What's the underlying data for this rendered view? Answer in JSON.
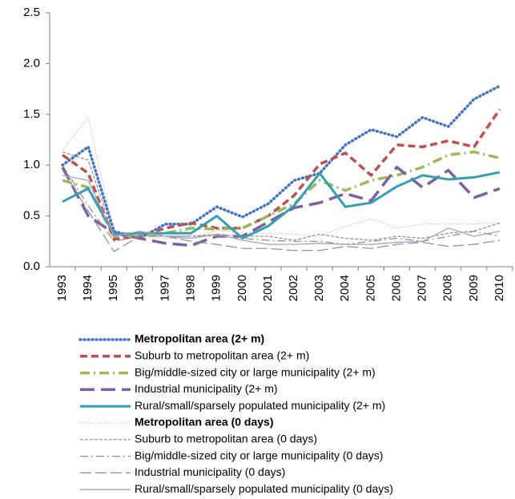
{
  "chart_data": {
    "type": "line",
    "categories": [
      "1993",
      "1994",
      "1995",
      "1996",
      "1997",
      "1998",
      "1999",
      "2000",
      "2001",
      "2002",
      "2003",
      "2004",
      "2005",
      "2006",
      "2007",
      "2008",
      "2009",
      "2010"
    ],
    "ylim": [
      0,
      2.5
    ],
    "yticks": [
      {
        "value": 0,
        "label": "0.0"
      },
      0.5,
      {
        "value": 1,
        "label": "1.0"
      },
      1.5,
      {
        "value": 2,
        "label": "2.0"
      },
      2.5
    ],
    "series": [
      {
        "name": "Metropolitan area (2+ m)",
        "color": "#4472c4",
        "values": [
          1.0,
          1.18,
          0.35,
          0.28,
          0.42,
          0.42,
          0.59,
          0.49,
          0.62,
          0.85,
          0.92,
          1.2,
          1.35,
          1.28,
          1.47,
          1.38,
          1.65,
          1.78
        ]
      },
      {
        "name": "Suburb to metropolitan area (2+ m)",
        "color": "#c0504d",
        "values": [
          1.1,
          0.92,
          0.27,
          0.3,
          0.38,
          0.43,
          0.38,
          0.38,
          0.5,
          0.7,
          1.01,
          1.12,
          0.9,
          1.2,
          1.18,
          1.24,
          1.18,
          1.55
        ]
      },
      {
        "name": "Big/middle-sized city or large municipality (2+ m)",
        "color": "#9bbb59",
        "values": [
          0.85,
          0.78,
          0.3,
          0.3,
          0.33,
          0.38,
          0.37,
          0.38,
          0.5,
          0.62,
          0.85,
          0.75,
          0.85,
          0.9,
          0.98,
          1.1,
          1.13,
          1.07
        ]
      },
      {
        "name": "Industrial municipality (2+ m)",
        "color": "#7f5fa0",
        "values": [
          0.98,
          0.5,
          0.33,
          0.28,
          0.23,
          0.21,
          0.3,
          0.3,
          0.44,
          0.58,
          0.63,
          0.72,
          0.65,
          0.98,
          0.78,
          0.95,
          0.68,
          0.77
        ]
      },
      {
        "name": "Rural/small/sparsely populated municipality (2+ m)",
        "color": "#31a0b5",
        "values": [
          0.64,
          0.77,
          0.32,
          0.33,
          0.33,
          0.33,
          0.5,
          0.28,
          0.4,
          0.6,
          0.92,
          0.59,
          0.63,
          0.79,
          0.9,
          0.86,
          0.88,
          0.93
        ]
      },
      {
        "name": "Metropolitan area (0 days)",
        "color": "#a6a6a6",
        "values": [
          1.15,
          1.47,
          0.32,
          0.3,
          0.28,
          0.28,
          0.36,
          0.33,
          0.33,
          0.32,
          0.3,
          0.4,
          0.47,
          0.38,
          0.42,
          0.42,
          0.42,
          0.43
        ]
      },
      {
        "name": "Suburb to metropolitan area (0 days)",
        "color": "#8c8c8c",
        "values": [
          1.13,
          1.05,
          0.3,
          0.35,
          0.3,
          0.3,
          0.32,
          0.3,
          0.3,
          0.26,
          0.32,
          0.28,
          0.26,
          0.3,
          0.28,
          0.33,
          0.35,
          0.43
        ]
      },
      {
        "name": "Big/middle-sized city or large municipality (0 days)",
        "color": "#8c8c8c",
        "values": [
          1.0,
          0.6,
          0.25,
          0.3,
          0.3,
          0.3,
          0.3,
          0.28,
          0.26,
          0.25,
          0.25,
          0.22,
          0.25,
          0.28,
          0.25,
          0.3,
          0.35,
          0.3
        ]
      },
      {
        "name": "Industrial municipality (0 days)",
        "color": "#8c8c8c",
        "values": [
          0.95,
          0.55,
          0.15,
          0.3,
          0.3,
          0.25,
          0.22,
          0.18,
          0.18,
          0.16,
          0.16,
          0.2,
          0.18,
          0.22,
          0.24,
          0.2,
          0.22,
          0.26
        ]
      },
      {
        "name": "Rural/small/sparsely populated municipality (0 days)",
        "color": "#a9a0c8",
        "values": [
          0.9,
          0.85,
          0.3,
          0.35,
          0.3,
          0.28,
          0.32,
          0.26,
          0.22,
          0.22,
          0.23,
          0.22,
          0.22,
          0.24,
          0.25,
          0.38,
          0.3,
          0.35
        ]
      }
    ]
  }
}
